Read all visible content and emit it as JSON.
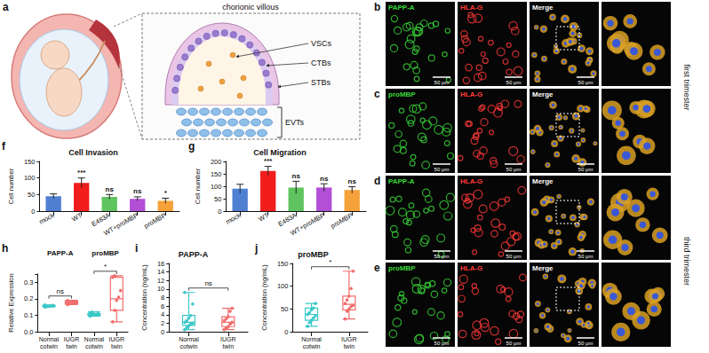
{
  "schematic": {
    "letter": "a",
    "title": "chorionic villous",
    "labels": [
      "VSCs",
      "CTBs",
      "STBs",
      "EVTs"
    ]
  },
  "images": {
    "merge_label": "Merge",
    "scale_bar": "50 μm",
    "rows": [
      {
        "letter": "b",
        "channels": [
          "PAPP-A",
          "HLA-G"
        ]
      },
      {
        "letter": "c",
        "channels": [
          "proMBP",
          "HLA-G"
        ]
      },
      {
        "letter": "d",
        "channels": [
          "PAPP-A",
          "HLA-G"
        ]
      },
      {
        "letter": "e",
        "channels": [
          "proMBP",
          "HLA-G"
        ]
      }
    ],
    "groups": [
      {
        "label": "first trimester",
        "rows": 2
      },
      {
        "label": "third trimester",
        "rows": 2
      }
    ]
  },
  "chart_data": [
    {
      "letter": "f",
      "type": "bar",
      "title": "Cell Invasion",
      "y_label": "Cell number",
      "categories": [
        "mock",
        "WT",
        "E483A",
        "WT+proMBP",
        "proMBP"
      ],
      "values": [
        45,
        85,
        43,
        37,
        31
      ],
      "errors": [
        7,
        15,
        7,
        6,
        8
      ],
      "colors": [
        "#4f7fd1",
        "#f21d1d",
        "#5fc45f",
        "#b24fd6",
        "#f5a23a"
      ],
      "annotations": [
        null,
        "***",
        "ns",
        "ns",
        "*"
      ],
      "ylim": [
        0,
        150
      ],
      "yticks": [
        0,
        50,
        100,
        150
      ]
    },
    {
      "letter": "g",
      "type": "bar",
      "title": "Cell Migration",
      "y_label": "Cell number",
      "categories": [
        "mock",
        "WT",
        "E483A",
        "WT+proMBP",
        "proMBP"
      ],
      "values": [
        90,
        162,
        95,
        95,
        85
      ],
      "errors": [
        18,
        18,
        25,
        15,
        13
      ],
      "colors": [
        "#4f7fd1",
        "#f21d1d",
        "#5fc45f",
        "#b24fd6",
        "#f5a23a"
      ],
      "annotations": [
        null,
        "***",
        "ns",
        "ns",
        "ns"
      ],
      "ylim": [
        0,
        200
      ],
      "yticks": [
        0,
        50,
        100,
        150,
        200
      ]
    },
    {
      "letter": "h",
      "type": "box",
      "y_label": "Relative Expression",
      "group_labels": [
        "PAPP-A",
        "proMBP"
      ],
      "categories": [
        "Normal cotwin",
        "IUGR twin",
        "Normal cotwin",
        "IUGR twin"
      ],
      "boxes": [
        [
          0.15,
          0.152,
          0.155,
          0.16,
          0.162
        ],
        [
          0.165,
          0.17,
          0.177,
          0.185,
          0.19
        ],
        [
          0.095,
          0.1,
          0.104,
          0.11,
          0.12
        ],
        [
          0.06,
          0.13,
          0.2,
          0.33,
          0.34
        ]
      ],
      "points": [
        [
          0.15,
          0.152,
          0.155,
          0.158,
          0.16,
          0.162,
          0.155
        ],
        [
          0.165,
          0.17,
          0.175,
          0.18,
          0.185,
          0.19
        ],
        [
          0.095,
          0.1,
          0.1,
          0.105,
          0.11,
          0.115,
          0.12
        ],
        [
          0.06,
          0.13,
          0.19,
          0.21,
          0.25,
          0.33,
          0.34
        ]
      ],
      "colors": [
        "#3cc8c8",
        "#f26d6d",
        "#3cc8c8",
        "#f26d6d"
      ],
      "brackets": [
        {
          "from": 0,
          "to": 1,
          "text": "ns"
        },
        {
          "from": 2,
          "to": 3,
          "text": "*"
        }
      ],
      "ylim": [
        0,
        0.35
      ],
      "yticks": [
        {
          "value": 0,
          "label": "0.0"
        },
        0.1,
        0.2,
        0.3
      ]
    },
    {
      "letter": "i",
      "type": "box",
      "title": "PAPP-A",
      "y_label": "Concentration (ng/mL)",
      "categories": [
        "Normal cotwin",
        "IUGR twin"
      ],
      "boxes": [
        [
          0.5,
          1.5,
          2.2,
          3.8,
          9.2
        ],
        [
          0.5,
          1.2,
          2.2,
          3.5,
          5.5
        ]
      ],
      "points": [
        [
          0.5,
          1,
          1.4,
          1.8,
          2,
          2.2,
          2.6,
          3.2,
          3.8,
          6.5,
          9.2
        ],
        [
          0.5,
          0.9,
          1.2,
          1.8,
          2.2,
          2.6,
          3,
          3.5,
          4.8,
          5.5
        ]
      ],
      "colors": [
        "#3cc8c8",
        "#f26d6d"
      ],
      "brackets": [
        {
          "from": 0,
          "to": 1,
          "text": "ns"
        }
      ],
      "ylim": [
        0,
        16
      ],
      "yticks": [
        0,
        2,
        4,
        6,
        8,
        10,
        12,
        14,
        16
      ]
    },
    {
      "letter": "j",
      "type": "box",
      "title": "proMBP",
      "y_label": "Concentration (ng/mL)",
      "categories": [
        "Normal cotwin",
        "IUGR twin"
      ],
      "boxes": [
        [
          12,
          25,
          38,
          52,
          62
        ],
        [
          28,
          48,
          60,
          78,
          133
        ]
      ],
      "points": [
        [
          12,
          20,
          25,
          30,
          35,
          38,
          42,
          48,
          52,
          62
        ],
        [
          28,
          45,
          50,
          55,
          58,
          62,
          70,
          78,
          95,
          133
        ]
      ],
      "colors": [
        "#3cc8c8",
        "#f26d6d"
      ],
      "brackets": [
        {
          "from": 0,
          "to": 1,
          "text": "*"
        }
      ],
      "ylim": [
        0,
        150
      ],
      "yticks": [
        0,
        50,
        100,
        150
      ]
    }
  ]
}
